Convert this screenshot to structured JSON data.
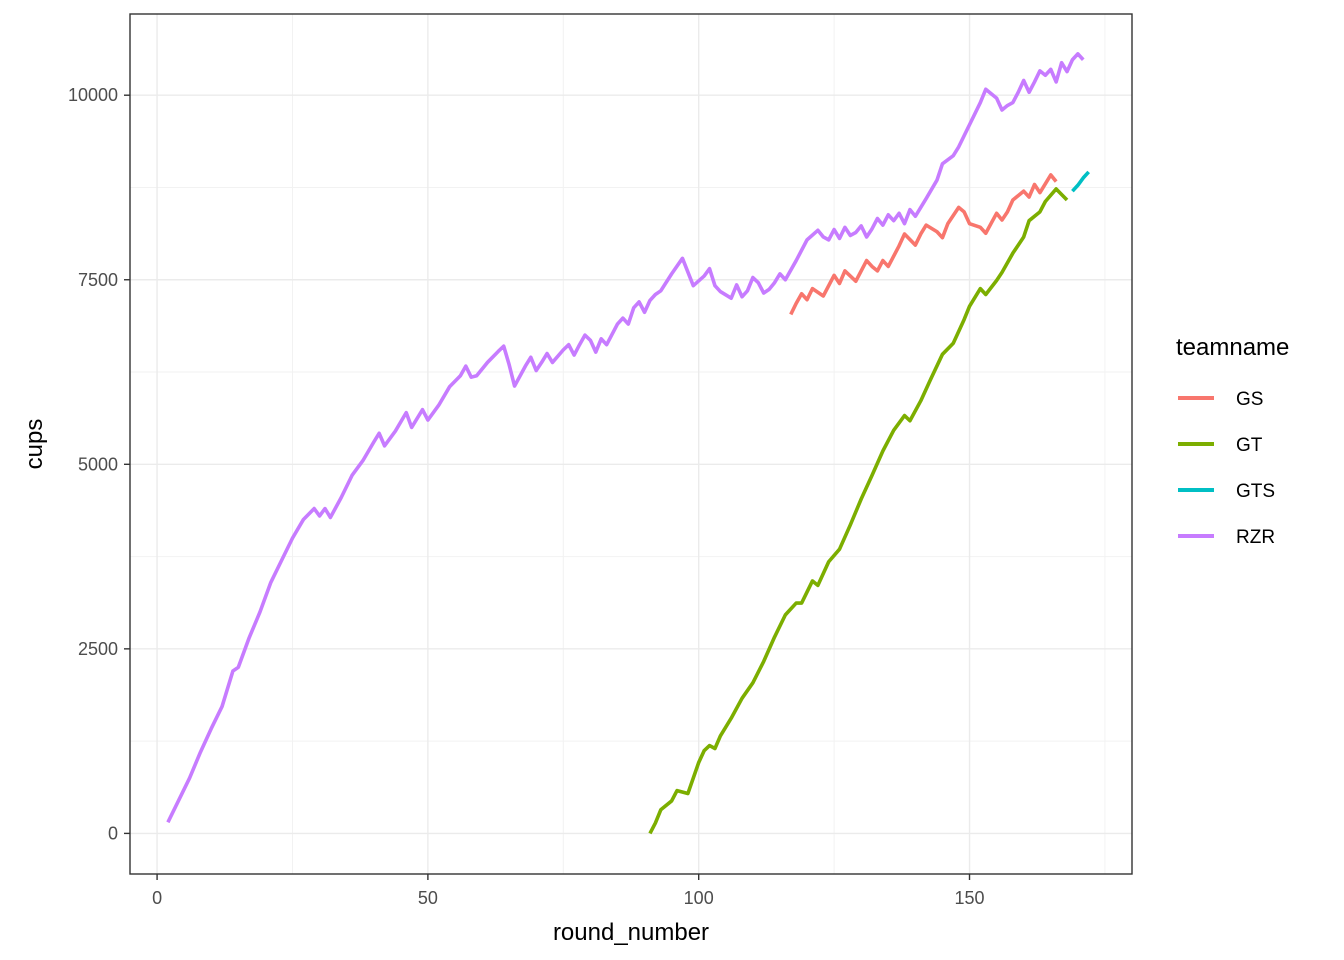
{
  "chart_data": {
    "type": "line",
    "xlabel": "round_number",
    "ylabel": "cups",
    "xlim": [
      -5,
      180
    ],
    "ylim": [
      -550,
      11100
    ],
    "x_ticks": [
      0,
      50,
      100,
      150
    ],
    "y_ticks": [
      0,
      2500,
      5000,
      7500,
      10000
    ],
    "x_tick_labels": [
      "0",
      "50",
      "100",
      "150"
    ],
    "y_tick_labels": [
      "0",
      "2500",
      "5000",
      "7500",
      "10000"
    ],
    "grid": true,
    "legend": {
      "title": "teamname",
      "position": "right"
    },
    "series": [
      {
        "name": "GS",
        "color": "#F8766D",
        "points": [
          [
            117,
            7030
          ],
          [
            118,
            7180
          ],
          [
            119,
            7310
          ],
          [
            120,
            7230
          ],
          [
            121,
            7380
          ],
          [
            123,
            7280
          ],
          [
            125,
            7560
          ],
          [
            126,
            7450
          ],
          [
            127,
            7620
          ],
          [
            129,
            7480
          ],
          [
            131,
            7760
          ],
          [
            132,
            7680
          ],
          [
            133,
            7620
          ],
          [
            134,
            7760
          ],
          [
            135,
            7680
          ],
          [
            137,
            7960
          ],
          [
            138,
            8120
          ],
          [
            140,
            7970
          ],
          [
            141,
            8120
          ],
          [
            142,
            8240
          ],
          [
            144,
            8150
          ],
          [
            145,
            8070
          ],
          [
            146,
            8260
          ],
          [
            148,
            8480
          ],
          [
            149,
            8420
          ],
          [
            150,
            8260
          ],
          [
            152,
            8210
          ],
          [
            153,
            8130
          ],
          [
            155,
            8400
          ],
          [
            156,
            8310
          ],
          [
            157,
            8420
          ],
          [
            158,
            8580
          ],
          [
            160,
            8700
          ],
          [
            161,
            8620
          ],
          [
            162,
            8790
          ],
          [
            163,
            8680
          ],
          [
            165,
            8920
          ],
          [
            166,
            8830
          ]
        ]
      },
      {
        "name": "GT",
        "color": "#7CAE00",
        "points": [
          [
            91,
            0
          ],
          [
            92,
            140
          ],
          [
            93,
            320
          ],
          [
            95,
            440
          ],
          [
            96,
            580
          ],
          [
            98,
            540
          ],
          [
            100,
            960
          ],
          [
            101,
            1120
          ],
          [
            102,
            1190
          ],
          [
            103,
            1150
          ],
          [
            104,
            1320
          ],
          [
            106,
            1560
          ],
          [
            108,
            1830
          ],
          [
            110,
            2040
          ],
          [
            112,
            2330
          ],
          [
            114,
            2660
          ],
          [
            116,
            2960
          ],
          [
            118,
            3120
          ],
          [
            119,
            3120
          ],
          [
            121,
            3420
          ],
          [
            122,
            3360
          ],
          [
            124,
            3680
          ],
          [
            126,
            3850
          ],
          [
            128,
            4180
          ],
          [
            130,
            4530
          ],
          [
            132,
            4850
          ],
          [
            134,
            5180
          ],
          [
            136,
            5460
          ],
          [
            138,
            5660
          ],
          [
            139,
            5590
          ],
          [
            141,
            5860
          ],
          [
            143,
            6180
          ],
          [
            145,
            6490
          ],
          [
            147,
            6640
          ],
          [
            149,
            6960
          ],
          [
            150,
            7140
          ],
          [
            152,
            7380
          ],
          [
            153,
            7300
          ],
          [
            155,
            7490
          ],
          [
            156,
            7600
          ],
          [
            158,
            7860
          ],
          [
            160,
            8080
          ],
          [
            161,
            8300
          ],
          [
            163,
            8420
          ],
          [
            164,
            8560
          ],
          [
            166,
            8730
          ],
          [
            168,
            8580
          ]
        ]
      },
      {
        "name": "GTS",
        "color": "#00BFC4",
        "points": [
          [
            169,
            8700
          ],
          [
            170,
            8780
          ],
          [
            171,
            8880
          ],
          [
            172,
            8960
          ]
        ]
      },
      {
        "name": "RZR",
        "color": "#C77CFF",
        "points": [
          [
            2,
            150
          ],
          [
            4,
            450
          ],
          [
            6,
            750
          ],
          [
            8,
            1100
          ],
          [
            10,
            1420
          ],
          [
            12,
            1720
          ],
          [
            14,
            2200
          ],
          [
            15,
            2250
          ],
          [
            17,
            2650
          ],
          [
            19,
            3000
          ],
          [
            21,
            3400
          ],
          [
            23,
            3700
          ],
          [
            25,
            4000
          ],
          [
            27,
            4250
          ],
          [
            29,
            4400
          ],
          [
            30,
            4300
          ],
          [
            31,
            4400
          ],
          [
            32,
            4280
          ],
          [
            34,
            4550
          ],
          [
            36,
            4850
          ],
          [
            38,
            5050
          ],
          [
            40,
            5300
          ],
          [
            41,
            5420
          ],
          [
            42,
            5250
          ],
          [
            44,
            5450
          ],
          [
            46,
            5700
          ],
          [
            47,
            5500
          ],
          [
            49,
            5740
          ],
          [
            50,
            5600
          ],
          [
            52,
            5800
          ],
          [
            54,
            6050
          ],
          [
            56,
            6200
          ],
          [
            57,
            6330
          ],
          [
            58,
            6180
          ],
          [
            59,
            6200
          ],
          [
            61,
            6380
          ],
          [
            63,
            6530
          ],
          [
            64,
            6600
          ],
          [
            65,
            6350
          ],
          [
            66,
            6060
          ],
          [
            68,
            6330
          ],
          [
            69,
            6450
          ],
          [
            70,
            6270
          ],
          [
            71,
            6380
          ],
          [
            72,
            6500
          ],
          [
            73,
            6380
          ],
          [
            75,
            6550
          ],
          [
            76,
            6620
          ],
          [
            77,
            6480
          ],
          [
            78,
            6620
          ],
          [
            79,
            6750
          ],
          [
            80,
            6680
          ],
          [
            81,
            6520
          ],
          [
            82,
            6700
          ],
          [
            83,
            6620
          ],
          [
            85,
            6900
          ],
          [
            86,
            6980
          ],
          [
            87,
            6900
          ],
          [
            88,
            7120
          ],
          [
            89,
            7200
          ],
          [
            90,
            7060
          ],
          [
            91,
            7220
          ],
          [
            92,
            7300
          ],
          [
            93,
            7350
          ],
          [
            95,
            7580
          ],
          [
            97,
            7790
          ],
          [
            99,
            7420
          ],
          [
            101,
            7550
          ],
          [
            102,
            7650
          ],
          [
            103,
            7420
          ],
          [
            104,
            7340
          ],
          [
            106,
            7250
          ],
          [
            107,
            7430
          ],
          [
            108,
            7270
          ],
          [
            109,
            7350
          ],
          [
            110,
            7530
          ],
          [
            111,
            7460
          ],
          [
            112,
            7320
          ],
          [
            113,
            7370
          ],
          [
            114,
            7460
          ],
          [
            115,
            7580
          ],
          [
            116,
            7500
          ],
          [
            118,
            7760
          ],
          [
            120,
            8040
          ],
          [
            122,
            8170
          ],
          [
            123,
            8080
          ],
          [
            124,
            8040
          ],
          [
            125,
            8180
          ],
          [
            126,
            8060
          ],
          [
            127,
            8210
          ],
          [
            128,
            8100
          ],
          [
            129,
            8140
          ],
          [
            130,
            8230
          ],
          [
            131,
            8080
          ],
          [
            132,
            8190
          ],
          [
            133,
            8330
          ],
          [
            134,
            8240
          ],
          [
            135,
            8380
          ],
          [
            136,
            8300
          ],
          [
            137,
            8400
          ],
          [
            138,
            8260
          ],
          [
            139,
            8450
          ],
          [
            140,
            8360
          ],
          [
            142,
            8600
          ],
          [
            144,
            8850
          ],
          [
            145,
            9070
          ],
          [
            147,
            9180
          ],
          [
            148,
            9300
          ],
          [
            150,
            9600
          ],
          [
            152,
            9900
          ],
          [
            153,
            10080
          ],
          [
            155,
            9960
          ],
          [
            156,
            9800
          ],
          [
            157,
            9860
          ],
          [
            158,
            9900
          ],
          [
            159,
            10040
          ],
          [
            160,
            10200
          ],
          [
            161,
            10040
          ],
          [
            162,
            10180
          ],
          [
            163,
            10330
          ],
          [
            164,
            10270
          ],
          [
            165,
            10350
          ],
          [
            166,
            10180
          ],
          [
            167,
            10440
          ],
          [
            168,
            10320
          ],
          [
            169,
            10480
          ],
          [
            170,
            10560
          ],
          [
            171,
            10480
          ]
        ]
      }
    ]
  }
}
